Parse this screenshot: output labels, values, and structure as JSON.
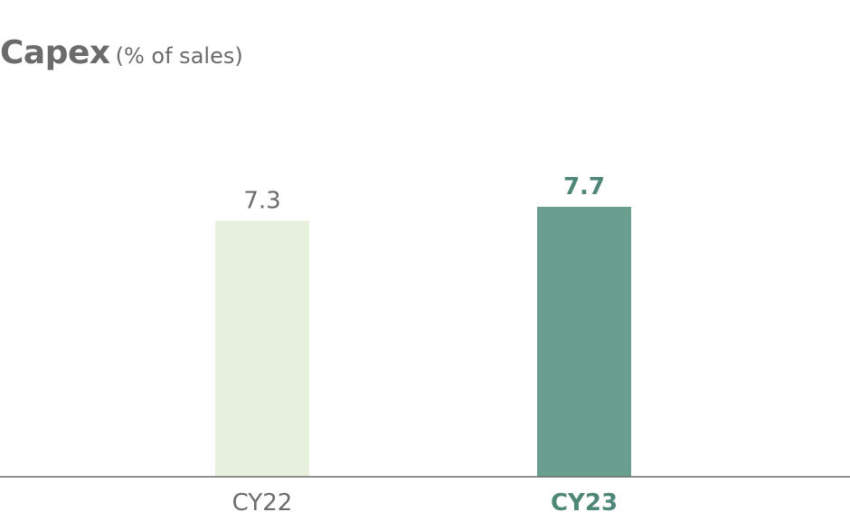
{
  "chart_data": {
    "type": "bar",
    "title": "Capex",
    "subtitle": "(% of sales)",
    "categories": [
      "CY22",
      "CY23"
    ],
    "values": [
      7.3,
      7.7
    ],
    "value_labels": [
      "7.3",
      "7.7"
    ],
    "ylim": [
      0,
      7.7
    ],
    "grid": false,
    "colors": {
      "bars": [
        "#e6f0dd",
        "#6a9e8f"
      ],
      "value_labels": [
        "#6b6b6b",
        "#4f8777"
      ],
      "category_labels": [
        "#6b6b6b",
        "#4f8777"
      ],
      "baseline": "#6b6b6b"
    },
    "highlight": [
      false,
      true
    ]
  }
}
